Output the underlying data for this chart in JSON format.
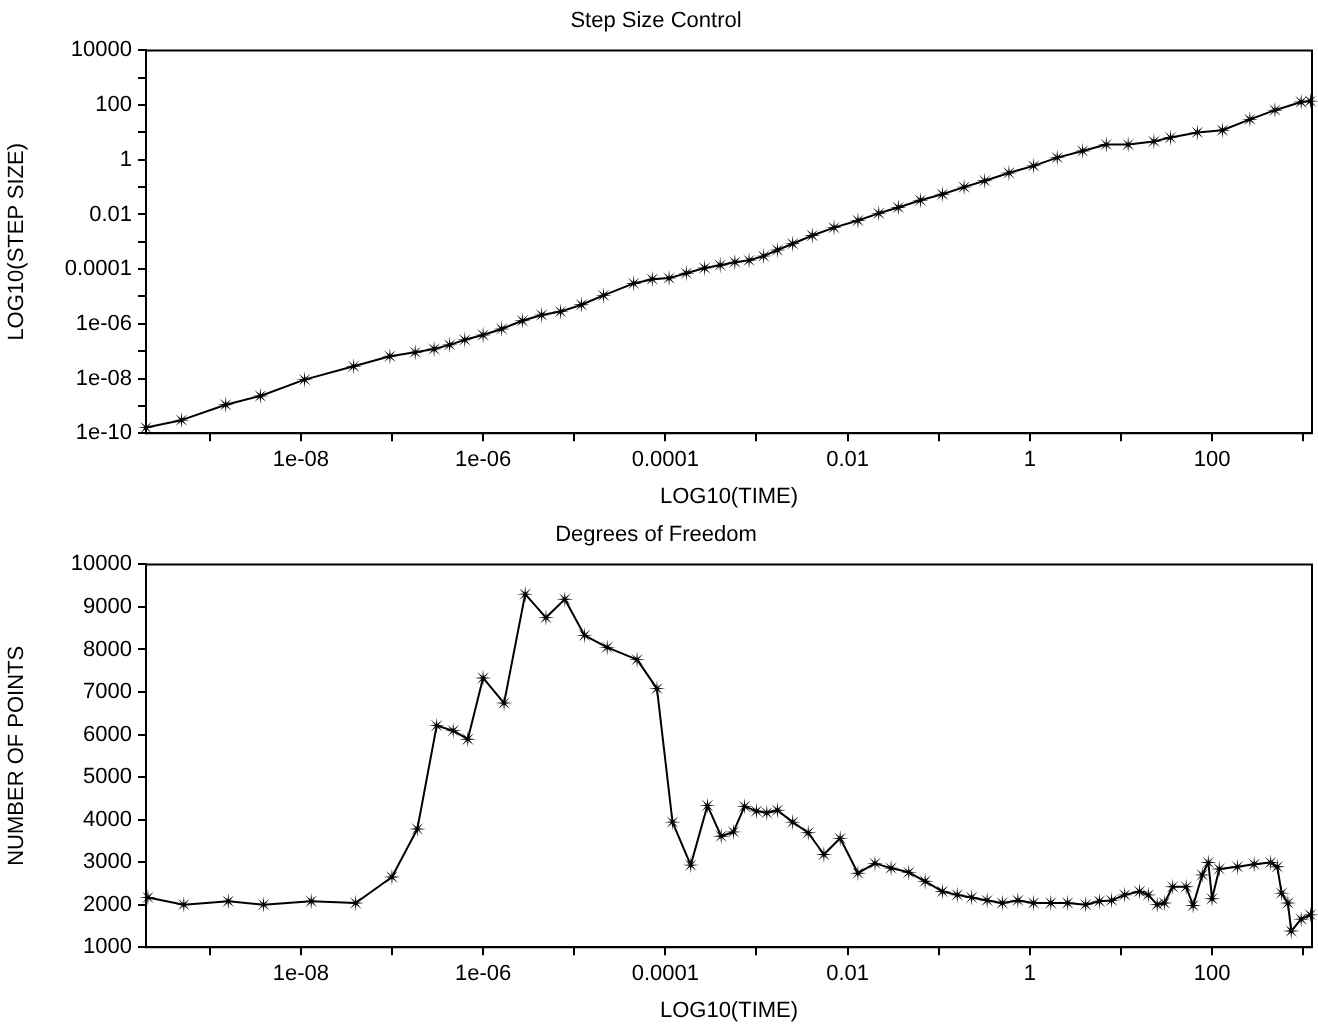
{
  "chart_data": [
    {
      "type": "line",
      "title": "Step Size Control",
      "xlabel": "LOG10(TIME)",
      "ylabel": "LOG10(STEP SIZE)",
      "log": "xy",
      "grid": false,
      "legend": false,
      "marker": "star",
      "line_style": "solid",
      "xlim": [
        2e-10,
        1250
      ],
      "ylim": [
        1e-10,
        10000
      ],
      "xticks": [
        {
          "value": 1e-09,
          "label": null
        },
        {
          "value": 1e-08,
          "label": "1e-08"
        },
        {
          "value": 1e-07,
          "label": null
        },
        {
          "value": 1e-06,
          "label": "1e-06"
        },
        {
          "value": 1e-05,
          "label": null
        },
        0.0001,
        {
          "value": 0.001,
          "label": null
        },
        0.01,
        {
          "value": 0.1,
          "label": null
        },
        1,
        {
          "value": 10,
          "label": null
        },
        100,
        {
          "value": 1000,
          "label": null
        }
      ],
      "yticks": [
        1e-10,
        {
          "value": 1e-09,
          "label": null
        },
        {
          "value": 1e-08,
          "label": "1e-08"
        },
        {
          "value": 1e-07,
          "label": null
        },
        {
          "value": 1e-06,
          "label": "1e-06"
        },
        {
          "value": 1e-05,
          "label": null
        },
        0.0001,
        {
          "value": 0.001,
          "label": null
        },
        0.01,
        {
          "value": 0.1,
          "label": null
        },
        1,
        {
          "value": 10,
          "label": null
        },
        100,
        {
          "value": 1000,
          "label": null
        },
        10000
      ],
      "series": [
        {
          "color": "#000000",
          "x": [
            2e-10,
            4.9e-10,
            1.5e-09,
            3.6e-09,
            1.1e-08,
            3.8e-08,
            9.5e-08,
            1.8e-07,
            2.9e-07,
            4.3e-07,
            6.3e-07,
            1e-06,
            1.6e-06,
            2.7e-06,
            4.4e-06,
            7.1e-06,
            1.2e-05,
            2.1e-05,
            4.5e-05,
            7.2e-05,
            0.00011,
            0.00017,
            0.00027,
            0.0004,
            0.00058,
            0.00083,
            0.0012,
            0.0017,
            0.0025,
            0.0041,
            0.0071,
            0.013,
            0.022,
            0.036,
            0.063,
            0.11,
            0.19,
            0.32,
            0.59,
            1.1,
            2,
            3.8,
            6.9,
            12,
            23,
            35,
            69,
            130,
            260,
            490,
            950,
            1200
          ],
          "values": [
            1.6e-10,
            3e-10,
            1.1e-09,
            2.3e-09,
            9.1e-09,
            2.8e-08,
            6.5e-08,
            9.1e-08,
            1.2e-07,
            1.7e-07,
            2.6e-07,
            3.9e-07,
            6.5e-07,
            1.3e-06,
            2.1e-06,
            2.8e-06,
            5e-06,
            1.1e-05,
            3e-05,
            4.3e-05,
            4.7e-05,
            7.1e-05,
            0.00011,
            0.00014,
            0.00018,
            0.00021,
            0.0003,
            0.0005,
            0.00085,
            0.0017,
            0.0033,
            0.006,
            0.011,
            0.018,
            0.033,
            0.055,
            0.1,
            0.17,
            0.33,
            0.6,
            1.2,
            2.1,
            3.6,
            3.6,
            4.7,
            6.5,
            10,
            12,
            30,
            65,
            130,
            140
          ]
        }
      ]
    },
    {
      "type": "line",
      "title": "Degrees of Freedom",
      "xlabel": "LOG10(TIME)",
      "ylabel": "NUMBER OF POINTS",
      "log": "x",
      "grid": false,
      "legend": false,
      "marker": "star",
      "line_style": "solid",
      "xlim": [
        2e-10,
        1250
      ],
      "ylim": [
        1000,
        10000
      ],
      "xticks": [
        {
          "value": 1e-09,
          "label": null
        },
        {
          "value": 1e-08,
          "label": "1e-08"
        },
        {
          "value": 1e-07,
          "label": null
        },
        {
          "value": 1e-06,
          "label": "1e-06"
        },
        {
          "value": 1e-05,
          "label": null
        },
        0.0001,
        {
          "value": 0.001,
          "label": null
        },
        0.01,
        {
          "value": 0.1,
          "label": null
        },
        1,
        {
          "value": 10,
          "label": null
        },
        100,
        {
          "value": 1000,
          "label": null
        }
      ],
      "yticks": [
        1000,
        2000,
        3000,
        4000,
        5000,
        6000,
        7000,
        8000,
        9000,
        10000
      ],
      "series": [
        {
          "color": "#000000",
          "x": [
            2.1e-10,
            5.2e-10,
            1.6e-09,
            3.9e-09,
            1.3e-08,
            4e-08,
            1e-07,
            1.9e-07,
            3.1e-07,
            4.7e-07,
            6.8e-07,
            1e-06,
            1.7e-06,
            2.9e-06,
            4.9e-06,
            7.9e-06,
            1.3e-05,
            2.3e-05,
            4.9e-05,
            8.1e-05,
            0.00012,
            0.00019,
            0.00029,
            0.00041,
            0.00056,
            0.00074,
            0.001,
            0.0013,
            0.0017,
            0.0025,
            0.0037,
            0.0055,
            0.0083,
            0.013,
            0.02,
            0.03,
            0.047,
            0.071,
            0.11,
            0.16,
            0.23,
            0.34,
            0.5,
            0.74,
            1.1,
            1.7,
            2.6,
            4.1,
            5.8,
            7.9,
            11,
            16,
            20,
            25,
            30,
            37,
            52,
            62,
            78,
            91,
            100,
            120,
            190,
            290,
            440,
            520,
            580,
            680,
            740,
            950,
            1200
          ],
          "values": [
            2170,
            2000,
            2080,
            2000,
            2080,
            2040,
            2650,
            3780,
            6210,
            6090,
            5890,
            7330,
            6740,
            9300,
            8750,
            9180,
            8330,
            8050,
            7760,
            7080,
            3940,
            2930,
            4330,
            3610,
            3710,
            4310,
            4200,
            4160,
            4220,
            3940,
            3690,
            3180,
            3560,
            2740,
            2970,
            2860,
            2760,
            2550,
            2310,
            2230,
            2170,
            2100,
            2040,
            2100,
            2040,
            2040,
            2040,
            2000,
            2080,
            2100,
            2230,
            2310,
            2230,
            2000,
            2040,
            2420,
            2420,
            1980,
            2700,
            2990,
            2140,
            2840,
            2890,
            2950,
            2990,
            2890,
            2270,
            2040,
            1380,
            1660,
            1760
          ]
        }
      ]
    }
  ]
}
